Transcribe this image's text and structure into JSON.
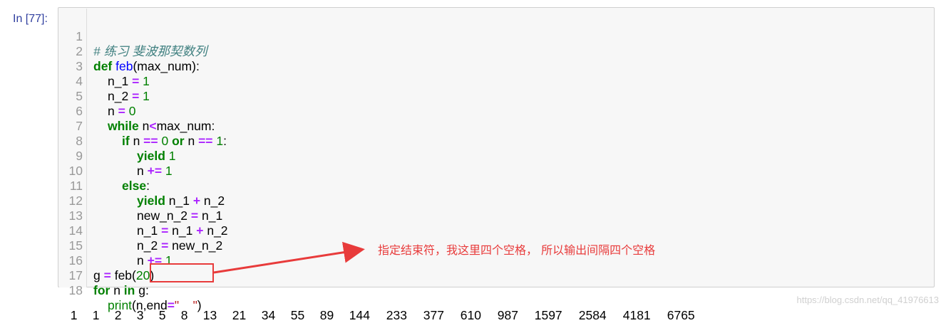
{
  "cell": {
    "prompt": "In [77]:",
    "lines": [
      {
        "n": "1"
      },
      {
        "n": "2"
      },
      {
        "n": "3"
      },
      {
        "n": "4"
      },
      {
        "n": "5"
      },
      {
        "n": "6"
      },
      {
        "n": "7"
      },
      {
        "n": "8"
      },
      {
        "n": "9"
      },
      {
        "n": "10"
      },
      {
        "n": "11"
      },
      {
        "n": "12"
      },
      {
        "n": "13"
      },
      {
        "n": "14"
      },
      {
        "n": "15"
      },
      {
        "n": "16"
      },
      {
        "n": "17"
      },
      {
        "n": "18"
      }
    ],
    "code": {
      "l1_comment": "# 练习 斐波那契数列",
      "l2_def": "def",
      "l2_name": "feb",
      "l2_rest": "(max_num):",
      "l3_a": "n_1 ",
      "l3_op": "=",
      "l3_num": " 1",
      "l4_a": "n_2 ",
      "l4_op": "=",
      "l4_num": " 1",
      "l5_a": "n ",
      "l5_op": "=",
      "l5_num": " 0",
      "l6_kw": "while",
      "l6_a": " n",
      "l6_op": "<",
      "l6_b": "max_num:",
      "l7_kw": "if",
      "l7_a": " n ",
      "l7_op1": "==",
      "l7_num1": " 0 ",
      "l7_kw2": "or",
      "l7_b": " n ",
      "l7_op2": "==",
      "l7_num2": " 1",
      "l7_c": ":",
      "l8_kw": "yield",
      "l8_num": " 1",
      "l9_a": "n ",
      "l9_op": "+=",
      "l9_num": " 1",
      "l10_kw": "else",
      "l10_a": ":",
      "l11_kw": "yield",
      "l11_a": " n_1 ",
      "l11_op": "+",
      "l11_b": " n_2",
      "l12_a": "new_n_2 ",
      "l12_op": "=",
      "l12_b": " n_1",
      "l13_a": "n_1 ",
      "l13_op1": "=",
      "l13_b": " n_1 ",
      "l13_op2": "+",
      "l13_c": " n_2",
      "l14_a": "n_2 ",
      "l14_op": "=",
      "l14_b": " new_n_2",
      "l15_a": "n ",
      "l15_op": "+=",
      "l15_num": " 1",
      "l16_a": "g ",
      "l16_op": "=",
      "l16_b": " feb(",
      "l16_num": "20",
      "l16_c": ")",
      "l17_kw": "for",
      "l17_a": " n ",
      "l17_kw2": "in",
      "l17_b": " g:",
      "l18_bi": "print",
      "l18_a": "(n,",
      "l18_b": "end",
      "l18_op": "=",
      "l18_str": "\"    \"",
      "l18_c": ")"
    }
  },
  "annotation": "指定结束符，我这里四个空格， 所以输出间隔四个空格",
  "output": [
    "1",
    "1",
    "2",
    "3",
    "5",
    "8",
    "13",
    "21",
    "34",
    "55",
    "89",
    "144",
    "233",
    "377",
    "610",
    "987",
    "1597",
    "2584",
    "4181",
    "6765"
  ],
  "watermark": "https://blog.csdn.net/qq_41976613",
  "colors": {
    "keyword": "#008000",
    "operator": "#AA22FF",
    "function": "#0000FF",
    "string": "#BA2121",
    "comment": "#408080",
    "prompt": "#303F9F",
    "annotation_red": "#e83b3b"
  }
}
